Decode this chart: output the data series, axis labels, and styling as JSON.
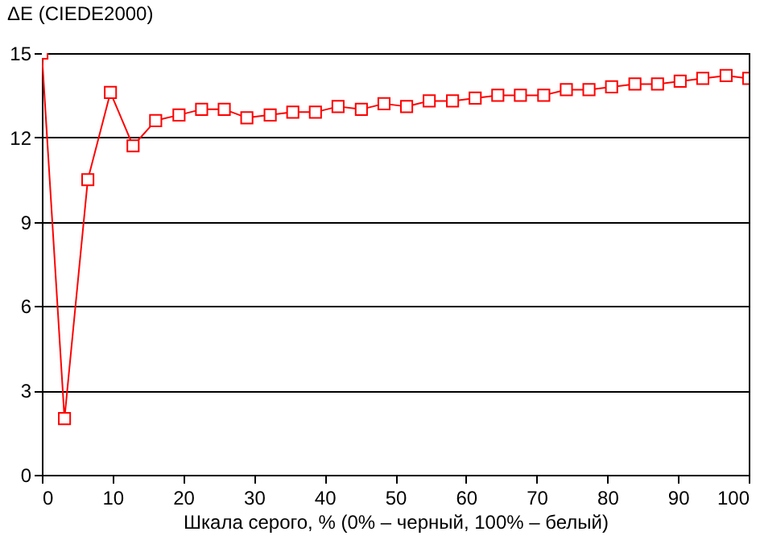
{
  "chart_data": {
    "type": "line",
    "ylabel": "ΔE (CIEDE2000)",
    "xlabel": "Шкала серого, % (0% – черный, 100% – белый)",
    "x": [
      0,
      3.2,
      6.5,
      9.7,
      12.9,
      16.1,
      19.4,
      22.6,
      25.8,
      29.0,
      32.3,
      35.5,
      38.7,
      41.9,
      45.2,
      48.4,
      51.6,
      54.8,
      58.1,
      61.3,
      64.5,
      67.7,
      71.0,
      74.2,
      77.4,
      80.6,
      83.9,
      87.1,
      90.3,
      93.5,
      96.8,
      100
    ],
    "series": [
      {
        "color": "#ff0000",
        "values": [
          15,
          2.0,
          10.5,
          13.6,
          11.7,
          12.6,
          12.8,
          13.0,
          13.0,
          12.7,
          12.8,
          12.9,
          12.9,
          13.1,
          13.0,
          13.2,
          13.1,
          13.3,
          13.3,
          13.4,
          13.5,
          13.5,
          13.5,
          13.7,
          13.7,
          13.8,
          13.9,
          13.9,
          14.0,
          14.1,
          14.2,
          14.1
        ]
      }
    ],
    "xlim": [
      0,
      100
    ],
    "xticks": [
      0,
      10,
      20,
      30,
      40,
      50,
      60,
      70,
      80,
      90,
      100
    ],
    "ylim": [
      0,
      15
    ],
    "yticks": [
      0,
      3,
      6,
      9,
      12,
      15
    ],
    "grid": "y",
    "marker": "square",
    "line_style": "solid"
  }
}
